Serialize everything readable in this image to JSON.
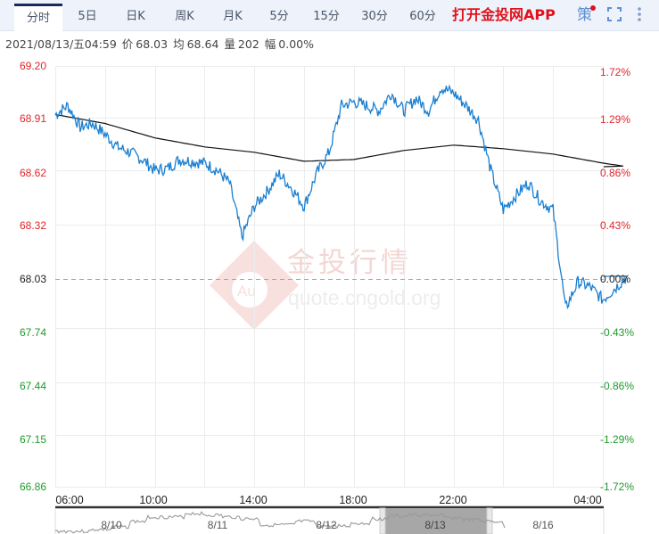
{
  "tabs": [
    {
      "label": "分时",
      "active": true
    },
    {
      "label": "5日",
      "active": false
    },
    {
      "label": "日K",
      "active": false
    },
    {
      "label": "周K",
      "active": false
    },
    {
      "label": "月K",
      "active": false
    },
    {
      "label": "5分",
      "active": false
    },
    {
      "label": "15分",
      "active": false
    },
    {
      "label": "30分",
      "active": false
    },
    {
      "label": "60分",
      "active": false
    }
  ],
  "toolbar": {
    "app_link": "打开金投网APP",
    "strategy_icon": "策",
    "fullscreen_icon": "fullscreen-icon",
    "more_icon": "more-vertical-icon"
  },
  "info": {
    "datetime": "2021/08/13/五04:59",
    "price_label": "价",
    "price": "68.03",
    "avg_label": "均",
    "avg": "68.64",
    "volume_label": "量",
    "volume": "202",
    "change_label": "幅",
    "change": "0.00%"
  },
  "watermark": {
    "title": "金投行情",
    "url": "quote.cngold.org",
    "logo": "Au"
  },
  "colors": {
    "up": "#e0262a",
    "down": "#1f9a2c",
    "neutral": "#222222",
    "price_line": "#1a7fd1",
    "avg_line": "#111111",
    "brand_red": "#e0121c",
    "active_tab_border": "#1b2a5a"
  },
  "navigator": {
    "dates": [
      "8/10",
      "8/11",
      "8/12",
      "8/13",
      "8/16"
    ],
    "selected": "8/13"
  },
  "chart_data": {
    "type": "line",
    "title": "",
    "xlabel": "",
    "ylabel": "",
    "x_ticks": [
      "06:00",
      "10:00",
      "14:00",
      "18:00",
      "22:00",
      "04:00"
    ],
    "y_ticks_left": [
      "69.20",
      "68.91",
      "68.62",
      "68.32",
      "68.03",
      "67.74",
      "67.44",
      "67.15",
      "66.86"
    ],
    "y_ticks_right": [
      "1.72%",
      "1.29%",
      "0.86%",
      "0.43%",
      "0.00%",
      "-0.43%",
      "-0.86%",
      "-1.29%",
      "-1.72%"
    ],
    "ylim": [
      66.86,
      69.2
    ],
    "reference_price": 68.03,
    "grid": true,
    "legend": "none",
    "series": [
      {
        "name": "价格",
        "x": [
          "06:00",
          "06:30",
          "07:00",
          "07:30",
          "08:00",
          "08:30",
          "09:00",
          "09:30",
          "10:00",
          "10:30",
          "11:00",
          "11:30",
          "12:00",
          "12:30",
          "13:00",
          "13:30",
          "14:00",
          "14:30",
          "15:00",
          "15:30",
          "16:00",
          "16:30",
          "17:00",
          "17:30",
          "18:00",
          "18:30",
          "19:00",
          "19:30",
          "20:00",
          "20:30",
          "21:00",
          "21:30",
          "22:00",
          "22:30",
          "23:00",
          "23:30",
          "00:00",
          "00:30",
          "01:00",
          "01:30",
          "02:00",
          "02:30",
          "03:00",
          "03:30",
          "04:00",
          "04:59"
        ],
        "values": [
          68.93,
          68.98,
          68.86,
          68.88,
          68.82,
          68.75,
          68.72,
          68.68,
          68.62,
          68.63,
          68.68,
          68.67,
          68.66,
          68.62,
          68.55,
          68.25,
          68.42,
          68.5,
          68.6,
          68.52,
          68.42,
          68.6,
          68.72,
          68.98,
          69.0,
          68.98,
          68.95,
          69.05,
          68.95,
          69.02,
          68.95,
          69.08,
          69.05,
          68.98,
          68.9,
          68.62,
          68.4,
          68.48,
          68.55,
          68.45,
          68.4,
          67.85,
          68.0,
          67.97,
          67.9,
          68.03
        ]
      },
      {
        "name": "均价",
        "x": [
          "06:00",
          "08:00",
          "10:00",
          "12:00",
          "14:00",
          "16:00",
          "18:00",
          "20:00",
          "22:00",
          "00:00",
          "02:00",
          "04:00",
          "04:59"
        ],
        "values": [
          68.93,
          68.88,
          68.8,
          68.75,
          68.72,
          68.67,
          68.68,
          68.73,
          68.76,
          68.74,
          68.71,
          68.66,
          68.64
        ]
      }
    ]
  }
}
